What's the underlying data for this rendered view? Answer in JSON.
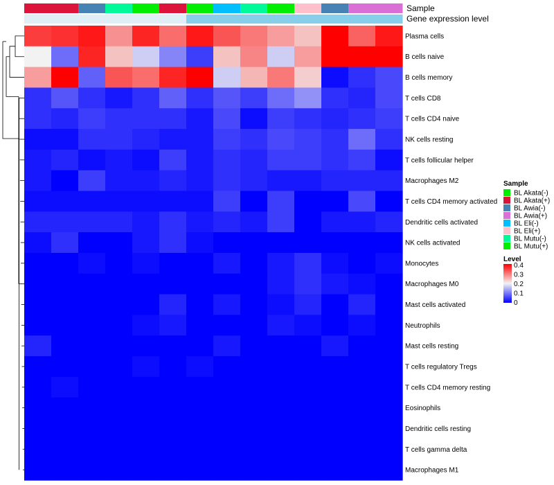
{
  "chart_data": {
    "type": "heatmap",
    "annotation_labels": {
      "sample": "Sample",
      "gene_level": "Gene expression level"
    },
    "columns": [
      {
        "sample": "BL Akata(+)",
        "gene_level": "low"
      },
      {
        "sample": "BL Akata(+)",
        "gene_level": "low"
      },
      {
        "sample": "BL Awia(-)",
        "gene_level": "low"
      },
      {
        "sample": "BL Mutu(-)",
        "gene_level": "low"
      },
      {
        "sample": "BL Mutu(+)",
        "gene_level": "low"
      },
      {
        "sample": "BL Akata(+)",
        "gene_level": "low"
      },
      {
        "sample": "BL Mutu(+)",
        "gene_level": "high"
      },
      {
        "sample": "BL Eli(-)",
        "gene_level": "high"
      },
      {
        "sample": "BL Mutu(-)",
        "gene_level": "high"
      },
      {
        "sample": "BL Mutu(+)",
        "gene_level": "high"
      },
      {
        "sample": "BL Eli(+)",
        "gene_level": "high"
      },
      {
        "sample": "BL Awia(-)",
        "gene_level": "high"
      },
      {
        "sample": "BL Awia(+)",
        "gene_level": "high"
      },
      {
        "sample": "BL Awia(+)",
        "gene_level": "high"
      }
    ],
    "rows": [
      "Plasma cells",
      "B cells naive",
      "B cells memory",
      "T cells CD8",
      "T cells CD4 naive",
      "NK cells resting",
      "T cells follicular helper",
      "Macrophages M2",
      "T cells CD4 memory activated",
      "Dendritic cells activated",
      "NK cells activated",
      "Monocytes",
      "Macrophages M0",
      "Mast cells activated",
      "Neutrophils",
      "Mast cells resting",
      "T cells regulatory  Tregs",
      "T cells CD4 memory resting",
      "Eosinophils",
      "Dendritic cells resting",
      "T cells gamma delta",
      "Macrophages M1"
    ],
    "values": [
      [
        0.35,
        0.36,
        0.38,
        0.28,
        0.37,
        0.31,
        0.38,
        0.33,
        0.3,
        0.27,
        0.24,
        0.4,
        0.32,
        0.38
      ],
      [
        0.2,
        0.09,
        0.37,
        0.24,
        0.17,
        0.11,
        0.05,
        0.24,
        0.29,
        0.17,
        0.27,
        0.45,
        0.45,
        0.45
      ],
      [
        0.27,
        0.42,
        0.08,
        0.33,
        0.31,
        0.37,
        0.42,
        0.17,
        0.25,
        0.3,
        0.23,
        0.01,
        0.04,
        0.06
      ],
      [
        0.04,
        0.07,
        0.04,
        0.02,
        0.04,
        0.08,
        0.04,
        0.07,
        0.05,
        0.09,
        0.12,
        0.04,
        0.03,
        0.06
      ],
      [
        0.04,
        0.03,
        0.05,
        0.04,
        0.04,
        0.04,
        0.02,
        0.06,
        0.01,
        0.05,
        0.04,
        0.03,
        0.04,
        0.05
      ],
      [
        0.01,
        0.01,
        0.04,
        0.04,
        0.03,
        0.02,
        0.02,
        0.05,
        0.04,
        0.06,
        0.05,
        0.04,
        0.09,
        0.04
      ],
      [
        0.02,
        0.03,
        0.01,
        0.02,
        0.01,
        0.05,
        0.02,
        0.04,
        0.03,
        0.05,
        0.05,
        0.04,
        0.05,
        0.01
      ],
      [
        0.02,
        0.0,
        0.05,
        0.02,
        0.02,
        0.03,
        0.02,
        0.04,
        0.03,
        0.02,
        0.02,
        0.03,
        0.03,
        0.03
      ],
      [
        0.01,
        0.01,
        0.01,
        0.01,
        0.01,
        0.01,
        0.01,
        0.05,
        0.0,
        0.05,
        0.0,
        0.0,
        0.06,
        0.0
      ],
      [
        0.03,
        0.03,
        0.03,
        0.03,
        0.02,
        0.04,
        0.02,
        0.03,
        0.02,
        0.05,
        0.0,
        0.02,
        0.02,
        0.03
      ],
      [
        0.01,
        0.04,
        0.0,
        0.0,
        0.02,
        0.04,
        0.01,
        0.0,
        0.0,
        0.0,
        0.0,
        0.0,
        0.0,
        0.0
      ],
      [
        0.0,
        0.0,
        0.01,
        0.0,
        0.01,
        0.0,
        0.0,
        0.02,
        0.0,
        0.02,
        0.04,
        0.01,
        0.0,
        0.01
      ],
      [
        0.0,
        0.0,
        0.0,
        0.0,
        0.0,
        0.0,
        0.0,
        0.0,
        0.0,
        0.02,
        0.04,
        0.02,
        0.01,
        0.0
      ],
      [
        0.0,
        0.0,
        0.0,
        0.0,
        0.0,
        0.03,
        0.0,
        0.02,
        0.0,
        0.01,
        0.03,
        0.0,
        0.03,
        0.0
      ],
      [
        0.0,
        0.0,
        0.0,
        0.0,
        0.01,
        0.02,
        0.0,
        0.0,
        0.0,
        0.02,
        0.01,
        0.0,
        0.01,
        0.0
      ],
      [
        0.03,
        0.0,
        0.0,
        0.0,
        0.0,
        0.0,
        0.0,
        0.02,
        0.0,
        0.0,
        0.0,
        0.02,
        0.0,
        0.0
      ],
      [
        0.0,
        0.0,
        0.0,
        0.0,
        0.01,
        0.0,
        0.01,
        0.0,
        0.0,
        0.0,
        0.0,
        0.0,
        0.0,
        0.0
      ],
      [
        0.0,
        0.01,
        0.0,
        0.0,
        0.0,
        0.0,
        0.0,
        0.0,
        0.0,
        0.0,
        0.0,
        0.0,
        0.0,
        0.0
      ],
      [
        0.0,
        0.0,
        0.0,
        0.0,
        0.0,
        0.0,
        0.0,
        0.0,
        0.0,
        0.0,
        0.0,
        0.0,
        0.0,
        0.0
      ],
      [
        0.0,
        0.0,
        0.0,
        0.0,
        0.0,
        0.0,
        0.0,
        0.0,
        0.0,
        0.0,
        0.0,
        0.0,
        0.0,
        0.0
      ],
      [
        0.0,
        0.0,
        0.0,
        0.0,
        0.0,
        0.0,
        0.0,
        0.0,
        0.0,
        0.0,
        0.0,
        0.0,
        0.0,
        0.0
      ],
      [
        0.0,
        0.0,
        0.0,
        0.0,
        0.0,
        0.0,
        0.0,
        0.0,
        0.0,
        0.0,
        0.0,
        0.0,
        0.0,
        0.0
      ]
    ],
    "color_scale": {
      "min": 0,
      "mid": 0.2,
      "max": 0.4,
      "low_color": "#0000ff",
      "mid_color": "#f2f2f2",
      "high_color": "#ff0000"
    },
    "sample_colors": {
      "BL Akata(-)": "#00ee00",
      "BL Akata(+)": "#dc143c",
      "BL Awia(-)": "#4682b4",
      "BL Awia(+)": "#da70d6",
      "BL Eli(-)": "#00bfff",
      "BL Eli(+)": "#ffc0cb",
      "BL Mutu(-)": "#00fa9a",
      "BL Mutu(+)": "#00ee00"
    },
    "gene_level_colors": {
      "low": "#e0eef6",
      "high": "#87ceeb"
    },
    "legend": {
      "sample_title": "Sample",
      "sample_items": [
        "BL Akata(-)",
        "BL Akata(+)",
        "BL Awia(-)",
        "BL Awia(+)",
        "BL Eli(-)",
        "BL Eli(+)",
        "BL Mutu(-)",
        "BL Mutu(+)"
      ],
      "level_title": "Level",
      "level_ticks": [
        "0.4",
        "0.3",
        "0.2",
        "0.1",
        "0"
      ],
      "placement": "right"
    },
    "dendrogram": "rows-left"
  }
}
